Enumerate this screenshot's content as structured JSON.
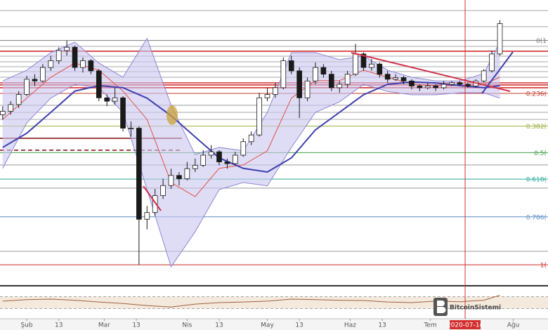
{
  "chart_data": {
    "type": "candlestick",
    "xlim": [
      -10,
      195
    ],
    "ylim": [
      3270,
      11700
    ],
    "xticks": [
      {
        "value": 0,
        "label": "Şub"
      },
      {
        "value": 12,
        "label": "13"
      },
      {
        "value": 29,
        "label": "Mar"
      },
      {
        "value": 41,
        "label": "13"
      },
      {
        "value": 60,
        "label": "Nis"
      },
      {
        "value": 72,
        "label": "13"
      },
      {
        "value": 90,
        "label": "May"
      },
      {
        "value": 102,
        "label": "13"
      },
      {
        "value": 121,
        "label": "Haz"
      },
      {
        "value": 133,
        "label": "13"
      },
      {
        "value": 151,
        "label": "Tem"
      },
      {
        "value": 182,
        "label": "Ağu"
      }
    ],
    "crosshair": {
      "value": 164,
      "label": "2020-07-14",
      "color": "#d32f2f"
    },
    "x": [
      -9,
      -6,
      -3,
      0,
      3,
      6,
      9,
      12,
      15,
      18,
      21,
      24,
      27,
      30,
      33,
      36,
      39,
      42,
      45,
      48,
      51,
      54,
      57,
      60,
      63,
      66,
      69,
      72,
      75,
      78,
      81,
      84,
      87,
      90,
      93,
      96,
      99,
      102,
      105,
      108,
      111,
      114,
      117,
      120,
      123,
      126,
      129,
      132,
      135,
      138,
      141,
      144,
      147,
      150,
      153,
      156,
      159,
      162,
      165,
      168,
      171,
      174,
      177
    ],
    "candles": [
      [
        8300,
        8550,
        8150,
        8400
      ],
      [
        8400,
        8700,
        8300,
        8600
      ],
      [
        8600,
        9000,
        8500,
        8900
      ],
      [
        8900,
        9450,
        8850,
        9350
      ],
      [
        9350,
        9500,
        9150,
        9300
      ],
      [
        9300,
        9800,
        9250,
        9700
      ],
      [
        9700,
        10050,
        9600,
        9900
      ],
      [
        9900,
        10300,
        9800,
        10200
      ],
      [
        10200,
        10500,
        10050,
        10300
      ],
      [
        10300,
        10350,
        9600,
        9700
      ],
      [
        9700,
        10000,
        9550,
        9900
      ],
      [
        9900,
        9950,
        9500,
        9600
      ],
      [
        9600,
        9650,
        8700,
        8800
      ],
      [
        8800,
        8900,
        8550,
        8700
      ],
      [
        8700,
        9100,
        8600,
        8800
      ],
      [
        8800,
        8850,
        7800,
        7900
      ],
      [
        7900,
        8100,
        7650,
        7900
      ],
      [
        7900,
        7950,
        3850,
        5200
      ],
      [
        5200,
        5600,
        4900,
        5400
      ],
      [
        5400,
        6100,
        5300,
        5900
      ],
      [
        5900,
        6400,
        5800,
        6200
      ],
      [
        6200,
        6700,
        6100,
        6500
      ],
      [
        6500,
        6600,
        6200,
        6400
      ],
      [
        6400,
        6900,
        6350,
        6700
      ],
      [
        6700,
        7000,
        6600,
        6800
      ],
      [
        6800,
        7250,
        6750,
        7100
      ],
      [
        7100,
        7400,
        7000,
        7200
      ],
      [
        7200,
        7250,
        6800,
        6900
      ],
      [
        6900,
        7000,
        6700,
        6850
      ],
      [
        6850,
        7200,
        6800,
        7100
      ],
      [
        7100,
        7600,
        7050,
        7500
      ],
      [
        7500,
        7800,
        7400,
        7700
      ],
      [
        7700,
        8950,
        7650,
        8800
      ],
      [
        8800,
        9100,
        8700,
        8900
      ],
      [
        8900,
        9250,
        8800,
        9100
      ],
      [
        9100,
        10000,
        9050,
        9900
      ],
      [
        9900,
        10050,
        9500,
        9600
      ],
      [
        9600,
        9700,
        8200,
        8800
      ],
      [
        8800,
        9400,
        8700,
        9300
      ],
      [
        9300,
        9850,
        9200,
        9700
      ],
      [
        9700,
        9800,
        9400,
        9500
      ],
      [
        9500,
        9600,
        9000,
        9100
      ],
      [
        9100,
        9300,
        8950,
        9200
      ],
      [
        9200,
        9600,
        9100,
        9500
      ],
      [
        9500,
        10400,
        9450,
        10100
      ],
      [
        10100,
        10150,
        9600,
        9700
      ],
      [
        9700,
        9950,
        9600,
        9800
      ],
      [
        9800,
        9850,
        9400,
        9500
      ],
      [
        9500,
        9600,
        9250,
        9350
      ],
      [
        9350,
        9500,
        9300,
        9400
      ],
      [
        9400,
        9450,
        9200,
        9300
      ],
      [
        9300,
        9350,
        9050,
        9150
      ],
      [
        9150,
        9200,
        9000,
        9100
      ],
      [
        9100,
        9250,
        9050,
        9150
      ],
      [
        9150,
        9200,
        9000,
        9100
      ],
      [
        9100,
        9300,
        9050,
        9200
      ],
      [
        9200,
        9300,
        9150,
        9250
      ],
      [
        9250,
        9300,
        9150,
        9200
      ],
      [
        9200,
        9250,
        9100,
        9150
      ],
      [
        9150,
        9350,
        9100,
        9300
      ],
      [
        9300,
        9650,
        9250,
        9600
      ],
      [
        9600,
        10200,
        9550,
        10100
      ],
      [
        10100,
        11100,
        10050,
        11000
      ]
    ],
    "candle_colors": {
      "up": "#ffffff",
      "down": "#1a1a1a",
      "outline": "#1a1a1a"
    },
    "bands": {
      "x": [
        -9,
        0,
        9,
        18,
        27,
        36,
        45,
        54,
        63,
        72,
        81,
        90,
        99,
        108,
        117,
        126,
        135,
        144,
        153,
        162,
        171,
        177
      ],
      "upper": [
        9300,
        9620,
        10140,
        10450,
        9830,
        9410,
        10560,
        8580,
        7120,
        7330,
        7230,
        8370,
        10140,
        10140,
        9930,
        10040,
        9620,
        9410,
        9300,
        9300,
        9520,
        10450
      ],
      "lower": [
        6710,
        8060,
        8790,
        9200,
        9100,
        8370,
        6080,
        3790,
        4830,
        6080,
        6290,
        6190,
        7330,
        8370,
        8680,
        9200,
        8990,
        8890,
        8890,
        8950,
        8950,
        8790
      ],
      "fill": "#c9c6ee",
      "stroke": "#8d86d6"
    },
    "ma_slow": {
      "values": [
        7330,
        7750,
        8370,
        9000,
        9160,
        9100,
        8790,
        8270,
        7640,
        7020,
        6710,
        6600,
        7020,
        7850,
        8370,
        8890,
        9200,
        9270,
        9240,
        9160,
        9100,
        9160
      ],
      "color": "#3f3fb0"
    },
    "ma_fast": {
      "values": [
        8160,
        8790,
        9410,
        9830,
        9620,
        9000,
        8160,
        6290,
        5870,
        6710,
        6810,
        7230,
        8790,
        9310,
        9310,
        9620,
        9410,
        9200,
        9160,
        9160,
        9200,
        9410
      ],
      "color": "#e0504a"
    },
    "levels": [
      11388,
      10909,
      10326,
      10035,
      9869,
      9723,
      9577,
      9411,
      8579,
      8370,
      8162,
      6810,
      6123,
      4250
    ],
    "level_color": "#8a8a8a",
    "red_levels": [
      10181,
      9244,
      9182,
      9099
    ],
    "red_level_color": "#d32f2f",
    "short_levels": [
      {
        "value": 7600,
        "to": 58,
        "dashed": false
      },
      {
        "value": 7247,
        "to": 58,
        "dashed": true
      }
    ],
    "short_level_color": "#8b1a1a",
    "fib": [
      {
        "label": "0(1",
        "value": 10500,
        "color": "#7a7a7a"
      },
      {
        "label": "0.236(",
        "value": 8931,
        "color": "#c0392b"
      },
      {
        "label": "0.382(",
        "value": 7960,
        "color": "#9aad3a"
      },
      {
        "label": "0.5(",
        "value": 7175,
        "color": "#43a047"
      },
      {
        "label": "0.618(",
        "value": 6390,
        "color": "#26a69a"
      },
      {
        "label": "0.786(",
        "value": 5273,
        "color": "#5b8cc6"
      },
      {
        "label": "1(",
        "value": 3850,
        "color": "#c62828"
      }
    ],
    "rsi": {
      "values": [
        55,
        60,
        62,
        58,
        52,
        47,
        40,
        35,
        45,
        50,
        52,
        55,
        62,
        60,
        58,
        57,
        52,
        50,
        55,
        53,
        58,
        75
      ],
      "ylim": [
        0,
        100
      ],
      "levels": [
        30,
        70
      ],
      "color": "#a0623e",
      "fill": "#f3e9dc"
    }
  },
  "watermark": "BitcoinSistemi"
}
